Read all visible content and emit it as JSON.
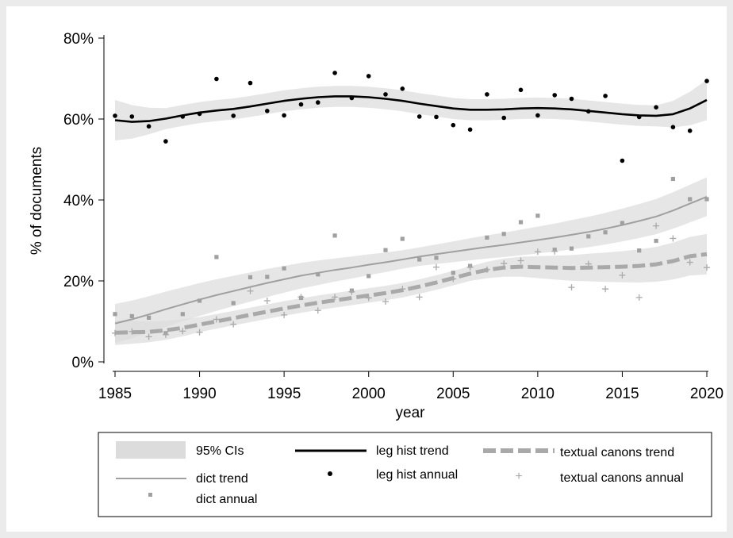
{
  "chart_data": {
    "type": "scatter",
    "title": "",
    "xlabel": "year",
    "ylabel": "% of documents",
    "xlim": [
      1985,
      2020
    ],
    "ylim": [
      0,
      80
    ],
    "x_ticks": [
      1985,
      1990,
      1995,
      2000,
      2005,
      2010,
      2015,
      2020
    ],
    "y_ticks": [
      0,
      20,
      40,
      60,
      80
    ],
    "y_tick_labels": [
      "0%",
      "20%",
      "40%",
      "60%",
      "80%"
    ],
    "grid": false,
    "legend_position": "bottom",
    "legend": {
      "ci": "95% CIs",
      "leg_trend": "leg hist trend",
      "tc_trend": "textual canons trend",
      "dict_trend": "dict trend",
      "leg_annual": "leg hist annual",
      "tc_annual": "textual canons annual",
      "dict_annual": "dict annual"
    },
    "colors": {
      "leg": "#000000",
      "dict": "#a0a0a0",
      "tc": "#a9a9a9",
      "ci_band": "#dcdcdc"
    },
    "years": [
      1985,
      1986,
      1987,
      1988,
      1989,
      1990,
      1991,
      1992,
      1993,
      1994,
      1995,
      1996,
      1997,
      1998,
      1999,
      2000,
      2001,
      2002,
      2003,
      2004,
      2005,
      2006,
      2007,
      2008,
      2009,
      2010,
      2011,
      2012,
      2013,
      2014,
      2015,
      2016,
      2017,
      2018,
      2019,
      2020
    ],
    "series": [
      {
        "name": "leg hist annual",
        "values": [
          60.8,
          60.6,
          58.2,
          54.5,
          60.6,
          61.3,
          69.9,
          60.8,
          68.9,
          62.0,
          60.9,
          63.6,
          64.1,
          71.4,
          65.2,
          70.6,
          66.1,
          67.5,
          60.6,
          60.5,
          58.5,
          57.4,
          66.1,
          60.3,
          67.2,
          60.9,
          65.9,
          65.0,
          61.9,
          65.7,
          49.7,
          60.5,
          62.9,
          58.0,
          57.1,
          69.4
        ]
      },
      {
        "name": "leg hist trend",
        "values": [
          59.7,
          59.3,
          59.5,
          60.1,
          60.9,
          61.6,
          62.1,
          62.5,
          63.1,
          63.8,
          64.5,
          65.0,
          65.4,
          65.6,
          65.6,
          65.4,
          65.0,
          64.5,
          63.8,
          63.2,
          62.6,
          62.3,
          62.3,
          62.4,
          62.6,
          62.7,
          62.6,
          62.4,
          62.0,
          61.6,
          61.2,
          60.9,
          60.8,
          61.2,
          62.6,
          64.7
        ]
      },
      {
        "name": "dict annual",
        "values": [
          11.8,
          11.3,
          10.9,
          7.1,
          11.8,
          15.1,
          25.9,
          14.5,
          20.9,
          21.0,
          23.1,
          15.8,
          21.6,
          31.2,
          17.6,
          21.2,
          27.6,
          30.4,
          25.3,
          25.7,
          22.0,
          23.7,
          30.7,
          31.6,
          34.5,
          36.1,
          27.7,
          28.0,
          31.0,
          32.0,
          34.3,
          27.5,
          29.9,
          45.2,
          40.2,
          40.2
        ]
      },
      {
        "name": "dict trend",
        "values": [
          9.5,
          10.5,
          11.7,
          13.0,
          14.2,
          15.4,
          16.5,
          17.5,
          18.5,
          19.5,
          20.4,
          21.3,
          22.0,
          22.7,
          23.3,
          24.0,
          24.6,
          25.3,
          26.0,
          26.6,
          27.2,
          27.8,
          28.4,
          28.9,
          29.5,
          30.1,
          30.7,
          31.4,
          32.1,
          32.9,
          33.8,
          34.8,
          35.9,
          37.4,
          39.1,
          40.8
        ]
      },
      {
        "name": "textual canons annual",
        "values": [
          7.1,
          7.5,
          6.2,
          6.7,
          7.6,
          7.3,
          10.5,
          9.3,
          17.5,
          15.1,
          11.6,
          16.0,
          12.7,
          16.0,
          17.3,
          15.8,
          14.9,
          18.0,
          16.0,
          23.4,
          20.5,
          23.4,
          22.8,
          24.3,
          25.0,
          27.2,
          27.3,
          18.4,
          24.2,
          18.0,
          21.4,
          15.9,
          33.6,
          30.5,
          24.6,
          23.3
        ]
      },
      {
        "name": "textual canons trend",
        "values": [
          7.2,
          7.3,
          7.4,
          7.8,
          8.4,
          9.2,
          10.0,
          10.8,
          11.6,
          12.4,
          13.2,
          13.9,
          14.6,
          15.2,
          15.8,
          16.4,
          17.0,
          17.7,
          18.6,
          19.6,
          20.7,
          21.8,
          22.7,
          23.3,
          23.5,
          23.4,
          23.3,
          23.2,
          23.3,
          23.4,
          23.5,
          23.7,
          24.1,
          24.9,
          26.1,
          26.6
        ]
      }
    ]
  }
}
